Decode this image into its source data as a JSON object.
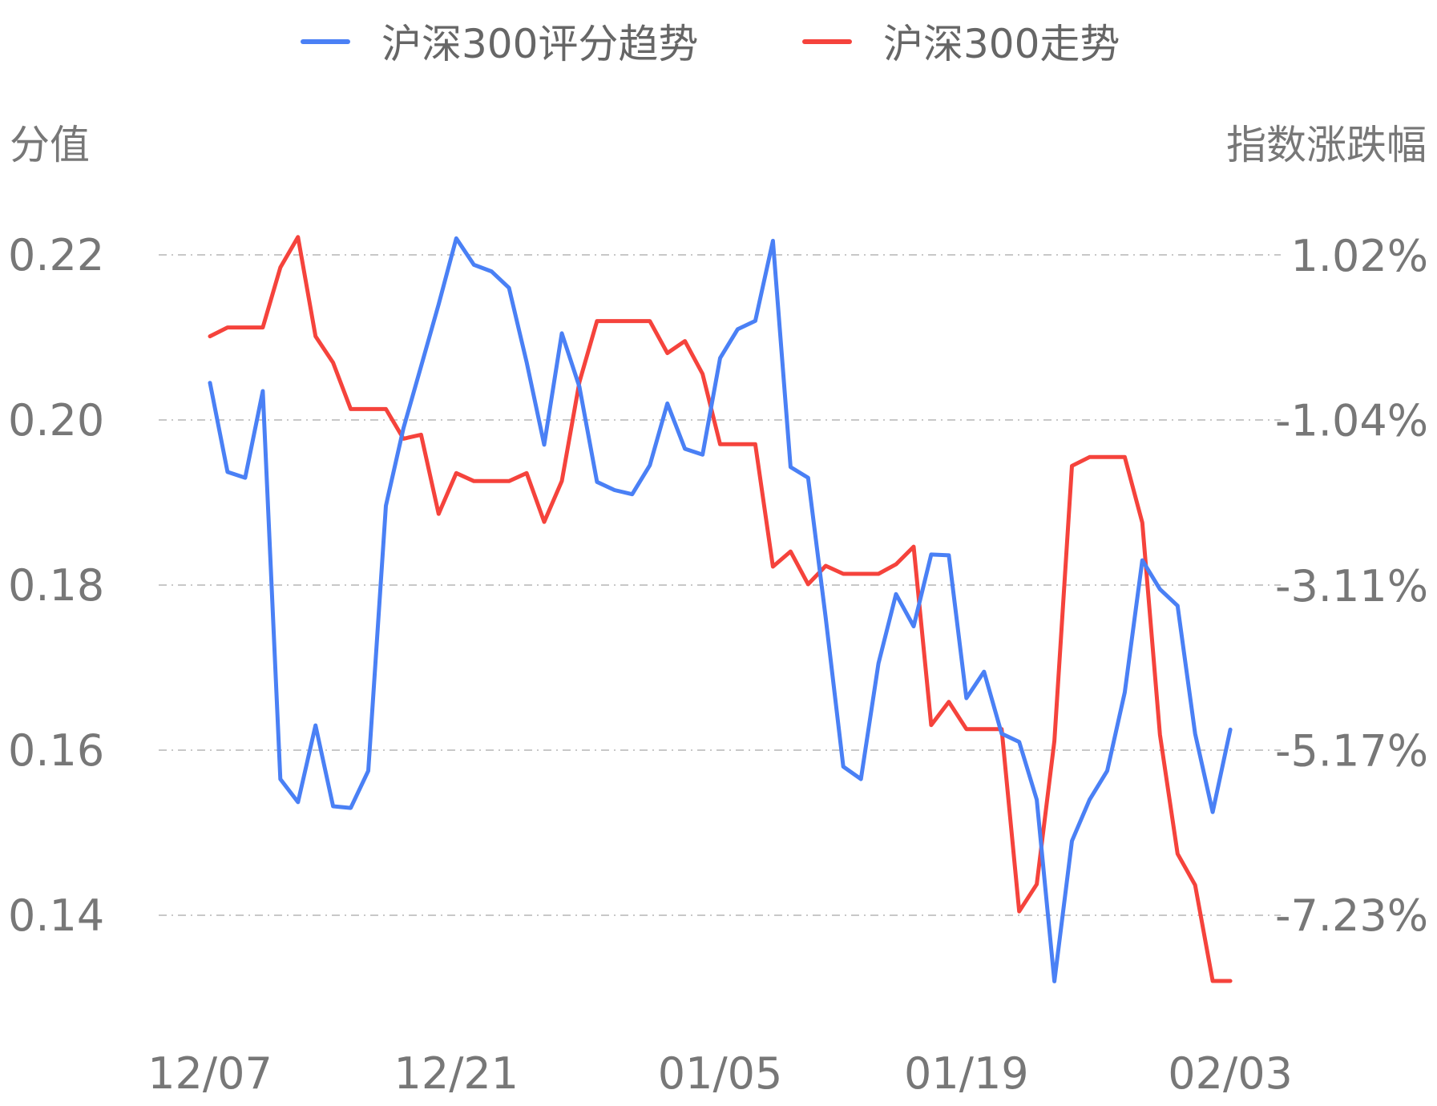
{
  "chart_data": {
    "type": "line",
    "legend": {
      "placement": "top-center"
    },
    "grid": true,
    "left_axis": {
      "title": "分值",
      "ticks": [
        "0.22",
        "0.20",
        "0.18",
        "0.16",
        "0.14"
      ],
      "tick_values": [
        0.22,
        0.2,
        0.18,
        0.16,
        0.14
      ],
      "range": [
        0.13,
        0.23
      ]
    },
    "right_axis": {
      "title": "指数涨跌幅",
      "ticks": [
        "1.02%",
        "-1.04%",
        "-3.11%",
        "-5.17%",
        "-7.23%"
      ],
      "tick_values": [
        1.02,
        -1.04,
        -3.11,
        -5.17,
        -7.23
      ],
      "range": [
        -8.26,
        2.06
      ]
    },
    "x_axis": {
      "labels": [
        "12/07",
        "12/21",
        "01/05",
        "01/19",
        "02/03"
      ],
      "label_indices": [
        0,
        14,
        29,
        43,
        58
      ]
    },
    "series": [
      {
        "name": "沪深300评分趋势",
        "axis": "left",
        "color": "#4a80f5",
        "values": [
          0.2045,
          0.1937,
          0.193,
          0.2035,
          0.1565,
          0.1537,
          0.163,
          0.1532,
          0.153,
          0.1575,
          0.1896,
          0.199,
          0.2065,
          0.214,
          0.222,
          0.2188,
          0.218,
          0.216,
          0.207,
          0.197,
          0.2105,
          0.204,
          0.1925,
          0.1915,
          0.191,
          0.1945,
          0.202,
          0.1965,
          0.1958,
          0.2075,
          0.211,
          0.212,
          0.2217,
          0.1943,
          0.193,
          0.176,
          0.158,
          0.1565,
          0.1705,
          0.1789,
          0.175,
          0.1837,
          0.1836,
          0.1663,
          0.1695,
          0.162,
          0.161,
          0.154,
          0.132,
          0.149,
          0.154,
          0.1575,
          0.167,
          0.183,
          0.1795,
          0.1775,
          0.162,
          0.1525,
          0.1625
        ]
      },
      {
        "name": "沪深300走势",
        "axis": "right",
        "color": "#f5433c",
        "values": [
          0.01,
          0.12,
          0.12,
          0.12,
          0.87,
          1.25,
          0.01,
          -0.32,
          -0.9,
          -0.9,
          -0.9,
          -1.27,
          -1.22,
          -2.21,
          -1.7,
          -1.8,
          -1.8,
          -1.8,
          -1.7,
          -2.31,
          -1.8,
          -0.56,
          0.2,
          0.2,
          0.2,
          0.2,
          -0.2,
          -0.05,
          -0.46,
          -1.34,
          -1.34,
          -1.34,
          -2.87,
          -2.68,
          -3.09,
          -2.86,
          -2.96,
          -2.96,
          -2.96,
          -2.84,
          -2.62,
          -4.85,
          -4.56,
          -4.9,
          -4.9,
          -4.9,
          -7.18,
          -6.84,
          -5.05,
          -1.61,
          -1.5,
          -1.5,
          -1.5,
          -2.32,
          -4.97,
          -6.46,
          -6.85,
          -8.05,
          -8.05
        ]
      }
    ]
  }
}
